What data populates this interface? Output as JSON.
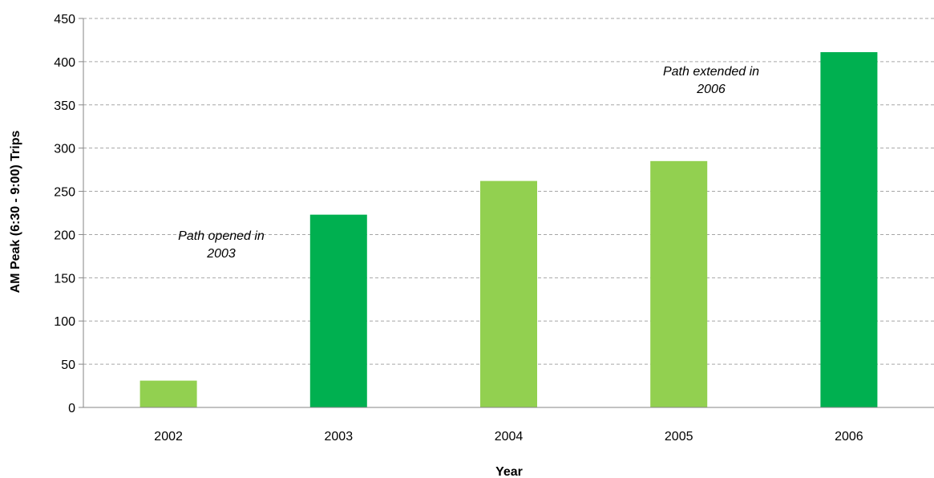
{
  "chart_data": {
    "type": "bar",
    "title": "",
    "xlabel": "Year",
    "ylabel": "AM Peak (6:30 - 9:00) Trips",
    "categories": [
      "2002",
      "2003",
      "2004",
      "2005",
      "2006"
    ],
    "values": [
      31,
      223,
      262,
      285,
      411
    ],
    "bar_colors": [
      "#92d050",
      "#00b050",
      "#92d050",
      "#92d050",
      "#00b050"
    ],
    "ylim": [
      0,
      450
    ],
    "yticks": [
      0,
      50,
      100,
      150,
      200,
      250,
      300,
      350,
      400,
      450
    ],
    "grid": true,
    "gridline_style": "dashed",
    "legend": "none",
    "annotations": [
      {
        "lines": [
          "Path opened in",
          "2003"
        ],
        "near_category": "2002"
      },
      {
        "lines": [
          "Path extended in",
          "2006"
        ],
        "near_category": "2006"
      }
    ]
  }
}
